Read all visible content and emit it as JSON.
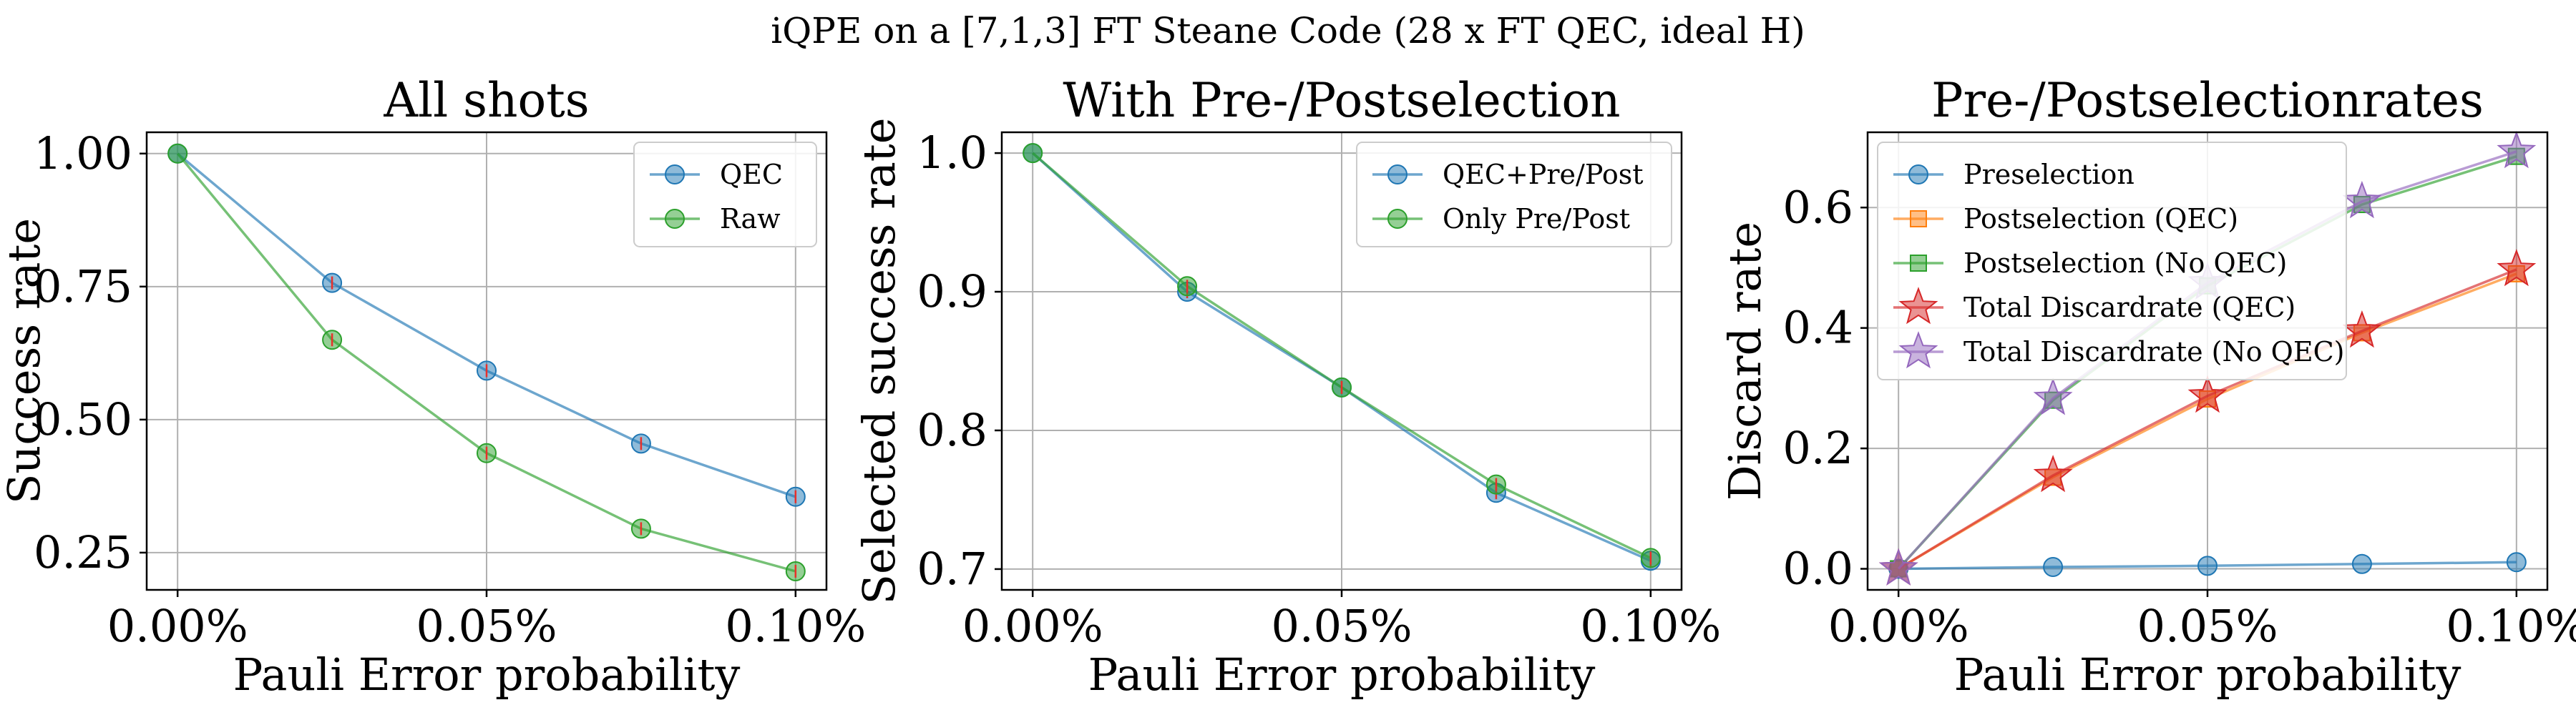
{
  "figure": {
    "suptitle": "iQPE on a [7,1,3] FT Steane Code (28 x FT QEC, ideal H)"
  },
  "chart_data": [
    {
      "type": "line",
      "title": "All shots",
      "xlabel": "Pauli Error probability",
      "ylabel": "Success rate",
      "x": [
        0.0,
        0.025,
        0.05,
        0.075,
        0.1
      ],
      "xlim": [
        -0.005,
        0.105
      ],
      "ylim": [
        0.18,
        1.04
      ],
      "xticks": [
        0.0,
        0.05,
        0.1
      ],
      "xtick_labels": [
        "0.00%",
        "0.05%",
        "0.10%"
      ],
      "yticks": [
        0.25,
        0.5,
        0.75,
        1.0
      ],
      "ytick_labels": [
        "0.25",
        "0.50",
        "0.75",
        "1.00"
      ],
      "grid": true,
      "legend_position": "top-right",
      "series": [
        {
          "name": "QEC",
          "color": "#1f77b4",
          "marker": "circle",
          "values": [
            1.0,
            0.757,
            0.592,
            0.455,
            0.355
          ]
        },
        {
          "name": "Raw",
          "color": "#2ca02c",
          "marker": "circle",
          "values": [
            1.0,
            0.65,
            0.437,
            0.295,
            0.215
          ]
        }
      ]
    },
    {
      "type": "line",
      "title": "With Pre-/Postselection",
      "xlabel": "Pauli Error probability",
      "ylabel": "Selected success rate",
      "x": [
        0.0,
        0.025,
        0.05,
        0.075,
        0.1
      ],
      "xlim": [
        -0.005,
        0.105
      ],
      "ylim": [
        0.685,
        1.015
      ],
      "xticks": [
        0.0,
        0.05,
        0.1
      ],
      "xtick_labels": [
        "0.00%",
        "0.05%",
        "0.10%"
      ],
      "yticks": [
        0.7,
        0.8,
        0.9,
        1.0
      ],
      "ytick_labels": [
        "0.7",
        "0.8",
        "0.9",
        "1.0"
      ],
      "grid": true,
      "legend_position": "top-right",
      "series": [
        {
          "name": "QEC+Pre/Post",
          "color": "#1f77b4",
          "marker": "circle",
          "values": [
            1.0,
            0.9,
            0.831,
            0.755,
            0.706
          ]
        },
        {
          "name": "Only Pre/Post",
          "color": "#2ca02c",
          "marker": "circle",
          "values": [
            1.0,
            0.904,
            0.831,
            0.761,
            0.708
          ]
        }
      ]
    },
    {
      "type": "line",
      "title": "Pre-/Postselectionrates",
      "xlabel": "Pauli Error probability",
      "ylabel": "Discard rate",
      "x": [
        0.0,
        0.025,
        0.05,
        0.075,
        0.1
      ],
      "xlim": [
        -0.005,
        0.105
      ],
      "ylim": [
        -0.035,
        0.725
      ],
      "xticks": [
        0.0,
        0.05,
        0.1
      ],
      "xtick_labels": [
        "0.00%",
        "0.05%",
        "0.10%"
      ],
      "yticks": [
        0.0,
        0.2,
        0.4,
        0.6
      ],
      "ytick_labels": [
        "0.0",
        "0.2",
        "0.4",
        "0.6"
      ],
      "grid": true,
      "legend_position": "top-left",
      "series": [
        {
          "name": "Preselection",
          "color": "#1f77b4",
          "marker": "circle",
          "values": [
            0.0,
            0.003,
            0.005,
            0.008,
            0.011
          ]
        },
        {
          "name": "Postselection (QEC)",
          "color": "#ff7f0e",
          "marker": "square",
          "values": [
            0.0,
            0.152,
            0.282,
            0.392,
            0.49
          ]
        },
        {
          "name": "Postselection (No QEC)",
          "color": "#2ca02c",
          "marker": "square",
          "values": [
            0.0,
            0.28,
            0.47,
            0.605,
            0.685
          ]
        },
        {
          "name": "Total Discardrate (QEC)",
          "color": "#d62728",
          "marker": "star",
          "values": [
            0.0,
            0.155,
            0.287,
            0.395,
            0.497
          ]
        },
        {
          "name": "Total Discardrate (No QEC)",
          "color": "#9467bd",
          "marker": "star",
          "values": [
            0.0,
            0.283,
            0.475,
            0.61,
            0.693
          ]
        }
      ]
    }
  ]
}
